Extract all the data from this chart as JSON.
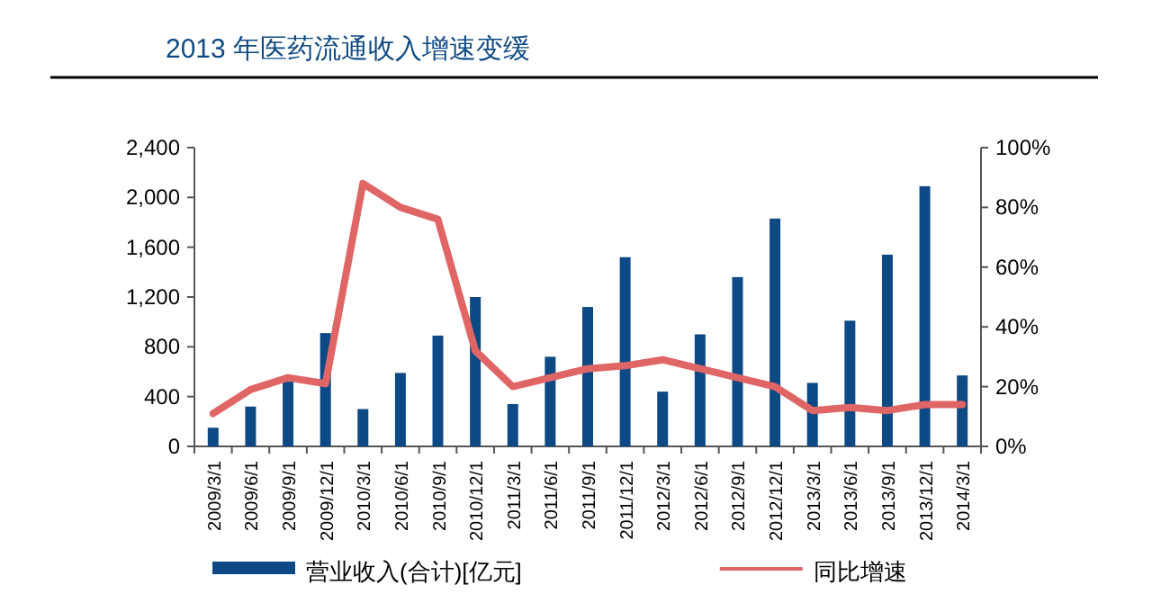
{
  "chart_data": {
    "type": "bar",
    "title": "2013 年医药流通收入增速变缓",
    "categories": [
      "2009/3/1",
      "2009/6/1",
      "2009/9/1",
      "2009/12/1",
      "2010/3/1",
      "2010/6/1",
      "2010/9/1",
      "2010/12/1",
      "2011/3/1",
      "2011/6/1",
      "2011/9/1",
      "2011/12/1",
      "2012/3/1",
      "2012/6/1",
      "2012/9/1",
      "2012/12/1",
      "2013/3/1",
      "2013/6/1",
      "2013/9/1",
      "2013/12/1",
      "2014/3/1"
    ],
    "series": [
      {
        "name": "营业收入(合计)[亿元]",
        "color": "#0d4a85",
        "values": [
          150,
          320,
          520,
          910,
          300,
          590,
          890,
          1200,
          340,
          720,
          1120,
          1520,
          440,
          900,
          1360,
          1830,
          510,
          1010,
          1540,
          2090,
          570
        ]
      },
      {
        "name": "同比增速",
        "type": "line",
        "axis": "y2",
        "color": "#e06666",
        "values": [
          11,
          19,
          23,
          21,
          88,
          80,
          76,
          32,
          20,
          23,
          26,
          27,
          29,
          26,
          23,
          20,
          12,
          13,
          12,
          14,
          14
        ]
      }
    ],
    "ylim": [
      0,
      2400
    ],
    "yticks": [
      0,
      400,
      800,
      {
        "value": 1200,
        "label": "1,200"
      },
      {
        "value": 1600,
        "label": "1,600"
      },
      {
        "value": 2000,
        "label": "2,000"
      },
      {
        "value": 2400,
        "label": "2,400"
      }
    ],
    "y2lim": [
      0,
      100
    ],
    "y2ticks": [
      {
        "value": 0,
        "label": "0%"
      },
      {
        "value": 20,
        "label": "20%"
      },
      {
        "value": 40,
        "label": "40%"
      },
      {
        "value": 60,
        "label": "60%"
      },
      {
        "value": 80,
        "label": "80%"
      },
      {
        "value": 100,
        "label": "100%"
      }
    ],
    "legend": "bottom",
    "grid": false
  }
}
